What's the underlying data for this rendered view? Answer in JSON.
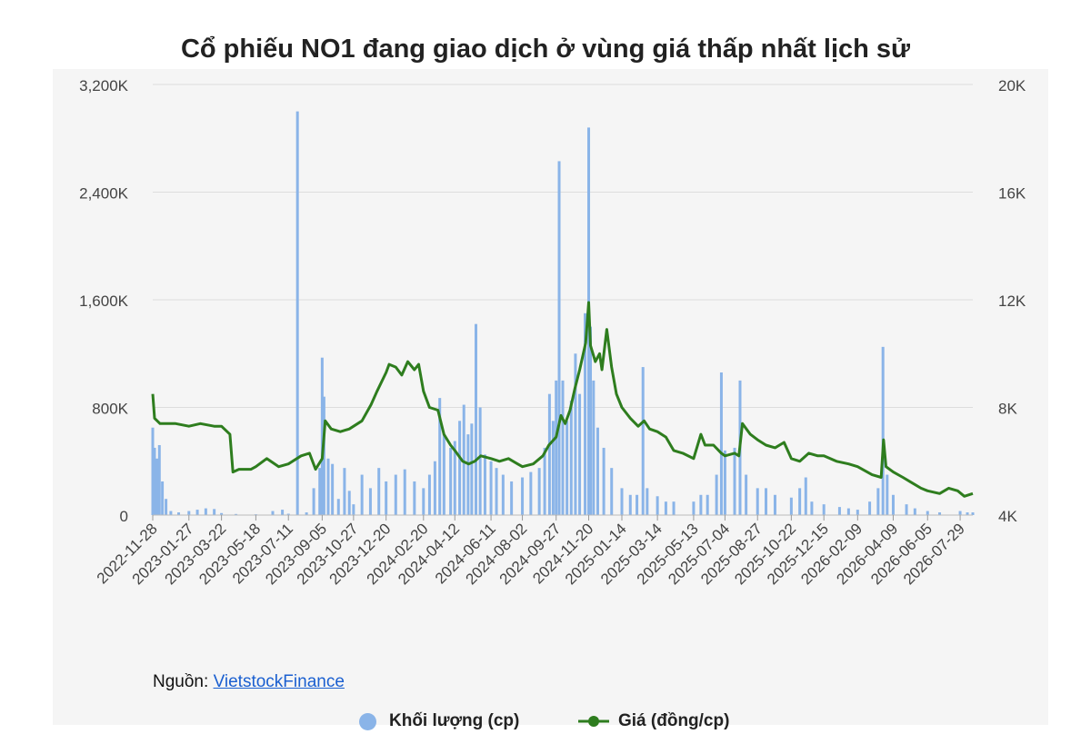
{
  "title": "Cổ phiếu NO1 đang giao dịch ở vùng giá thấp nhất lịch sử",
  "legend": {
    "volume_label": "Khối lượng (cp)",
    "price_label": "Giá (đồng/cp)"
  },
  "source": {
    "prefix": "Nguồn:",
    "link_text": "VietstockFinance"
  },
  "colors": {
    "volume": "#8ab4e8",
    "price": "#2e7d1e",
    "grid": "#dddddd",
    "background": "#f5f5f5"
  },
  "chart_data": {
    "type": "bar+line",
    "x_ticks": [
      "2022-11-28",
      "2023-01-27",
      "2023-03-22",
      "2023-05-18",
      "2023-07-11",
      "2023-09-05",
      "2023-10-27",
      "2023-12-20",
      "2024-02-20",
      "2024-04-12",
      "2024-06-11",
      "2024-08-02",
      "2024-09-27",
      "2024-11-20",
      "2025-01-14",
      "2025-03-14",
      "2025-05-13",
      "2025-07-04",
      "2025-08-27",
      "2025-10-22",
      "2025-12-15",
      "2026-02-09",
      "2026-04-09",
      "2026-06-05",
      "2026-07-29"
    ],
    "y_left": {
      "ticks": [
        "0",
        "800K",
        "1,600K",
        "2,400K",
        "3,200K"
      ],
      "range": [
        0,
        3200000
      ]
    },
    "y_right": {
      "ticks": [
        "4K",
        "8K",
        "12K",
        "16K",
        "20K"
      ],
      "range": [
        4000,
        20000
      ]
    },
    "series": [
      {
        "name": "Khối lượng (cp)",
        "type": "bar",
        "axis": "left",
        "points": [
          [
            "2022-11-28",
            650000
          ],
          [
            "2022-12-01",
            500000
          ],
          [
            "2022-12-05",
            420000
          ],
          [
            "2022-12-09",
            520000
          ],
          [
            "2022-12-14",
            250000
          ],
          [
            "2022-12-20",
            120000
          ],
          [
            "2022-12-28",
            30000
          ],
          [
            "2023-01-10",
            20000
          ],
          [
            "2023-01-27",
            30000
          ],
          [
            "2023-02-10",
            40000
          ],
          [
            "2023-02-24",
            50000
          ],
          [
            "2023-03-10",
            45000
          ],
          [
            "2023-03-22",
            15000
          ],
          [
            "2023-04-15",
            8000
          ],
          [
            "2023-05-18",
            6000
          ],
          [
            "2023-06-15",
            30000
          ],
          [
            "2023-07-01",
            40000
          ],
          [
            "2023-07-11",
            10000
          ],
          [
            "2023-07-26",
            3000000
          ],
          [
            "2023-08-10",
            20000
          ],
          [
            "2023-08-22",
            200000
          ],
          [
            "2023-09-01",
            350000
          ],
          [
            "2023-09-05",
            1170000
          ],
          [
            "2023-09-08",
            880000
          ],
          [
            "2023-09-15",
            420000
          ],
          [
            "2023-09-22",
            380000
          ],
          [
            "2023-10-02",
            120000
          ],
          [
            "2023-10-12",
            350000
          ],
          [
            "2023-10-20",
            180000
          ],
          [
            "2023-10-27",
            80000
          ],
          [
            "2023-11-10",
            300000
          ],
          [
            "2023-11-24",
            200000
          ],
          [
            "2023-12-08",
            350000
          ],
          [
            "2023-12-20",
            250000
          ],
          [
            "2024-01-05",
            300000
          ],
          [
            "2024-01-20",
            340000
          ],
          [
            "2024-02-05",
            250000
          ],
          [
            "2024-02-20",
            200000
          ],
          [
            "2024-03-01",
            300000
          ],
          [
            "2024-03-10",
            400000
          ],
          [
            "2024-03-18",
            870000
          ],
          [
            "2024-03-25",
            600000
          ],
          [
            "2024-04-05",
            500000
          ],
          [
            "2024-04-12",
            550000
          ],
          [
            "2024-04-20",
            700000
          ],
          [
            "2024-04-27",
            820000
          ],
          [
            "2024-05-04",
            600000
          ],
          [
            "2024-05-10",
            680000
          ],
          [
            "2024-05-17",
            1420000
          ],
          [
            "2024-05-24",
            800000
          ],
          [
            "2024-06-01",
            450000
          ],
          [
            "2024-06-11",
            400000
          ],
          [
            "2024-06-20",
            350000
          ],
          [
            "2024-07-01",
            300000
          ],
          [
            "2024-07-15",
            250000
          ],
          [
            "2024-08-02",
            280000
          ],
          [
            "2024-08-16",
            320000
          ],
          [
            "2024-08-30",
            350000
          ],
          [
            "2024-09-08",
            500000
          ],
          [
            "2024-09-16",
            900000
          ],
          [
            "2024-09-22",
            700000
          ],
          [
            "2024-09-27",
            1000000
          ],
          [
            "2024-10-02",
            2630000
          ],
          [
            "2024-10-08",
            1000000
          ],
          [
            "2024-10-15",
            700000
          ],
          [
            "2024-10-22",
            850000
          ],
          [
            "2024-10-29",
            1200000
          ],
          [
            "2024-11-05",
            900000
          ],
          [
            "2024-11-14",
            1500000
          ],
          [
            "2024-11-20",
            2880000
          ],
          [
            "2024-11-23",
            1400000
          ],
          [
            "2024-11-28",
            1000000
          ],
          [
            "2024-12-05",
            650000
          ],
          [
            "2024-12-15",
            500000
          ],
          [
            "2024-12-28",
            350000
          ],
          [
            "2025-01-14",
            200000
          ],
          [
            "2025-01-28",
            150000
          ],
          [
            "2025-02-08",
            150000
          ],
          [
            "2025-02-18",
            1100000
          ],
          [
            "2025-02-25",
            200000
          ],
          [
            "2025-03-14",
            140000
          ],
          [
            "2025-03-28",
            100000
          ],
          [
            "2025-04-10",
            100000
          ],
          [
            "2025-05-13",
            100000
          ],
          [
            "2025-05-25",
            150000
          ],
          [
            "2025-06-05",
            150000
          ],
          [
            "2025-06-20",
            300000
          ],
          [
            "2025-06-28",
            1060000
          ],
          [
            "2025-07-04",
            480000
          ],
          [
            "2025-07-20",
            500000
          ],
          [
            "2025-07-29",
            1000000
          ],
          [
            "2025-08-08",
            300000
          ],
          [
            "2025-08-27",
            200000
          ],
          [
            "2025-09-10",
            200000
          ],
          [
            "2025-09-25",
            150000
          ],
          [
            "2025-10-22",
            130000
          ],
          [
            "2025-11-05",
            200000
          ],
          [
            "2025-11-15",
            280000
          ],
          [
            "2025-11-25",
            100000
          ],
          [
            "2025-12-15",
            80000
          ],
          [
            "2026-01-10",
            60000
          ],
          [
            "2026-01-25",
            50000
          ],
          [
            "2026-02-09",
            40000
          ],
          [
            "2026-03-01",
            100000
          ],
          [
            "2026-03-15",
            200000
          ],
          [
            "2026-03-23",
            1250000
          ],
          [
            "2026-03-30",
            300000
          ],
          [
            "2026-04-09",
            150000
          ],
          [
            "2026-05-01",
            80000
          ],
          [
            "2026-05-15",
            50000
          ],
          [
            "2026-06-05",
            30000
          ],
          [
            "2026-06-25",
            20000
          ],
          [
            "2026-07-29",
            30000
          ],
          [
            "2026-08-10",
            20000
          ],
          [
            "2026-08-19",
            20000
          ]
        ]
      },
      {
        "name": "Giá (đồng/cp)",
        "type": "line",
        "axis": "right",
        "points": [
          [
            "2022-11-28",
            8500
          ],
          [
            "2022-12-01",
            7600
          ],
          [
            "2022-12-10",
            7400
          ],
          [
            "2023-01-05",
            7400
          ],
          [
            "2023-01-27",
            7300
          ],
          [
            "2023-02-15",
            7400
          ],
          [
            "2023-03-10",
            7300
          ],
          [
            "2023-03-22",
            7300
          ],
          [
            "2023-04-05",
            7000
          ],
          [
            "2023-04-10",
            5600
          ],
          [
            "2023-04-20",
            5700
          ],
          [
            "2023-05-10",
            5700
          ],
          [
            "2023-05-18",
            5800
          ],
          [
            "2023-06-05",
            6100
          ],
          [
            "2023-06-25",
            5800
          ],
          [
            "2023-07-11",
            5900
          ],
          [
            "2023-08-01",
            6200
          ],
          [
            "2023-08-15",
            6300
          ],
          [
            "2023-08-25",
            5700
          ],
          [
            "2023-09-05",
            6100
          ],
          [
            "2023-09-10",
            7500
          ],
          [
            "2023-09-20",
            7200
          ],
          [
            "2023-10-05",
            7100
          ],
          [
            "2023-10-20",
            7200
          ],
          [
            "2023-10-27",
            7300
          ],
          [
            "2023-11-10",
            7500
          ],
          [
            "2023-11-25",
            8100
          ],
          [
            "2023-12-05",
            8600
          ],
          [
            "2023-12-20",
            9300
          ],
          [
            "2023-12-25",
            9600
          ],
          [
            "2024-01-05",
            9500
          ],
          [
            "2024-01-15",
            9200
          ],
          [
            "2024-01-25",
            9700
          ],
          [
            "2024-02-05",
            9400
          ],
          [
            "2024-02-12",
            9600
          ],
          [
            "2024-02-20",
            8600
          ],
          [
            "2024-03-01",
            8000
          ],
          [
            "2024-03-15",
            7900
          ],
          [
            "2024-03-25",
            7000
          ],
          [
            "2024-04-05",
            6600
          ],
          [
            "2024-04-12",
            6400
          ],
          [
            "2024-04-25",
            6000
          ],
          [
            "2024-05-05",
            5900
          ],
          [
            "2024-05-15",
            6000
          ],
          [
            "2024-05-25",
            6200
          ],
          [
            "2024-06-11",
            6100
          ],
          [
            "2024-06-25",
            6000
          ],
          [
            "2024-07-10",
            6100
          ],
          [
            "2024-07-25",
            5900
          ],
          [
            "2024-08-02",
            5800
          ],
          [
            "2024-08-20",
            5900
          ],
          [
            "2024-09-05",
            6200
          ],
          [
            "2024-09-15",
            6600
          ],
          [
            "2024-09-27",
            6900
          ],
          [
            "2024-10-05",
            7700
          ],
          [
            "2024-10-12",
            7400
          ],
          [
            "2024-10-20",
            7900
          ],
          [
            "2024-10-28",
            8700
          ],
          [
            "2024-11-05",
            9400
          ],
          [
            "2024-11-15",
            10400
          ],
          [
            "2024-11-20",
            11900
          ],
          [
            "2024-11-23",
            10300
          ],
          [
            "2024-12-01",
            9700
          ],
          [
            "2024-12-08",
            10000
          ],
          [
            "2024-12-12",
            9400
          ],
          [
            "2024-12-20",
            10900
          ],
          [
            "2024-12-28",
            9500
          ],
          [
            "2025-01-05",
            8500
          ],
          [
            "2025-01-14",
            8000
          ],
          [
            "2025-01-28",
            7600
          ],
          [
            "2025-02-10",
            7300
          ],
          [
            "2025-02-20",
            7500
          ],
          [
            "2025-03-01",
            7200
          ],
          [
            "2025-03-14",
            7100
          ],
          [
            "2025-03-28",
            6900
          ],
          [
            "2025-04-10",
            6400
          ],
          [
            "2025-04-25",
            6300
          ],
          [
            "2025-05-13",
            6100
          ],
          [
            "2025-05-25",
            7000
          ],
          [
            "2025-06-01",
            6600
          ],
          [
            "2025-06-15",
            6600
          ],
          [
            "2025-06-28",
            6300
          ],
          [
            "2025-07-04",
            6200
          ],
          [
            "2025-07-20",
            6300
          ],
          [
            "2025-07-27",
            6200
          ],
          [
            "2025-08-02",
            7400
          ],
          [
            "2025-08-15",
            7000
          ],
          [
            "2025-08-27",
            6800
          ],
          [
            "2025-09-10",
            6600
          ],
          [
            "2025-09-25",
            6500
          ],
          [
            "2025-10-10",
            6700
          ],
          [
            "2025-10-22",
            6100
          ],
          [
            "2025-11-05",
            6000
          ],
          [
            "2025-11-20",
            6300
          ],
          [
            "2025-12-05",
            6200
          ],
          [
            "2025-12-15",
            6200
          ],
          [
            "2026-01-05",
            6000
          ],
          [
            "2026-01-25",
            5900
          ],
          [
            "2026-02-09",
            5800
          ],
          [
            "2026-03-05",
            5500
          ],
          [
            "2026-03-20",
            5400
          ],
          [
            "2026-03-24",
            6800
          ],
          [
            "2026-03-28",
            5800
          ],
          [
            "2026-04-09",
            5600
          ],
          [
            "2026-04-25",
            5400
          ],
          [
            "2026-05-10",
            5200
          ],
          [
            "2026-05-25",
            5000
          ],
          [
            "2026-06-05",
            4900
          ],
          [
            "2026-06-25",
            4800
          ],
          [
            "2026-07-10",
            5000
          ],
          [
            "2026-07-25",
            4900
          ],
          [
            "2026-08-05",
            4700
          ],
          [
            "2026-08-19",
            4800
          ]
        ]
      }
    ],
    "grid": true,
    "legend_position": "bottom"
  }
}
